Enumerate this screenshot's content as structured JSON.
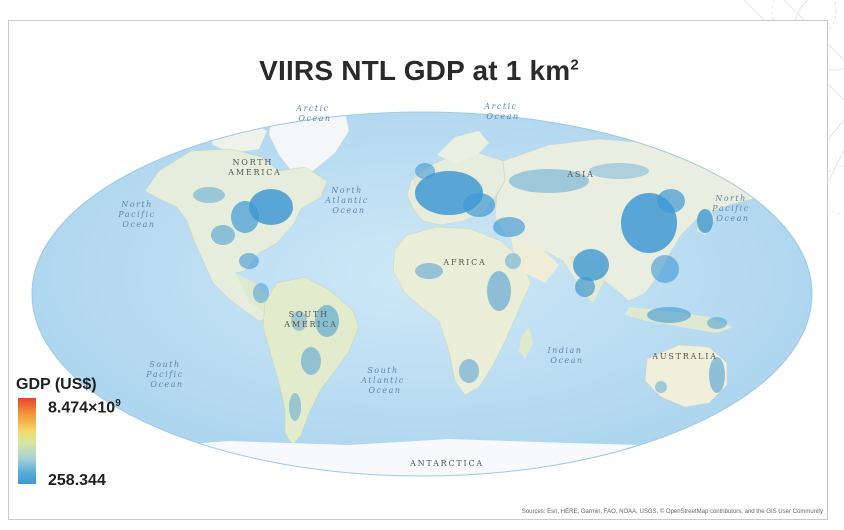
{
  "title": {
    "text": "VIIRS NTL GDP at 1 km",
    "superscript": "2"
  },
  "map": {
    "ocean_labels": {
      "arctic_left": [
        "Arctic",
        "Ocean"
      ],
      "arctic_right": [
        "Arctic",
        "Ocean"
      ],
      "north_pacific_left": [
        "North",
        "Pacific",
        "Ocean"
      ],
      "north_atlantic": [
        "North",
        "Atlantic",
        "Ocean"
      ],
      "north_pacific_right": [
        "North",
        "Pacific",
        "Ocean"
      ],
      "south_pacific": [
        "South",
        "Pacific",
        "Ocean"
      ],
      "south_atlantic": [
        "South",
        "Atlantic",
        "Ocean"
      ],
      "indian": [
        "Indian",
        "Ocean"
      ]
    },
    "land_labels": {
      "north_america": [
        "NORTH",
        "AMERICA"
      ],
      "south_america": [
        "SOUTH",
        "AMERICA"
      ],
      "africa": "AFRICA",
      "asia": "ASIA",
      "australia": "AUSTRALIA",
      "antarctica": "ANTARCTICA"
    },
    "colors": {
      "ocean": "#c4e2f4",
      "ocean_edge": "#aed6ef",
      "land": "#eef2e6",
      "land_green": "#dde8c4",
      "ice": "#f6f8fb",
      "gdp_blue": "#3f98d3"
    }
  },
  "legend": {
    "title": "GDP (US$)",
    "max_mantissa": "8.474×10",
    "max_exponent": "9",
    "min_value": "258.344",
    "colors": [
      "#e8442c",
      "#f39a3a",
      "#f4d86a",
      "#d5e6a0",
      "#a8d3d5",
      "#5aaed8",
      "#3f98d3"
    ]
  },
  "attribution": "Sources: Esri, HERE, Garmin, FAO, NOAA, USGS, © OpenStreetMap contributors, and the GIS User Community"
}
